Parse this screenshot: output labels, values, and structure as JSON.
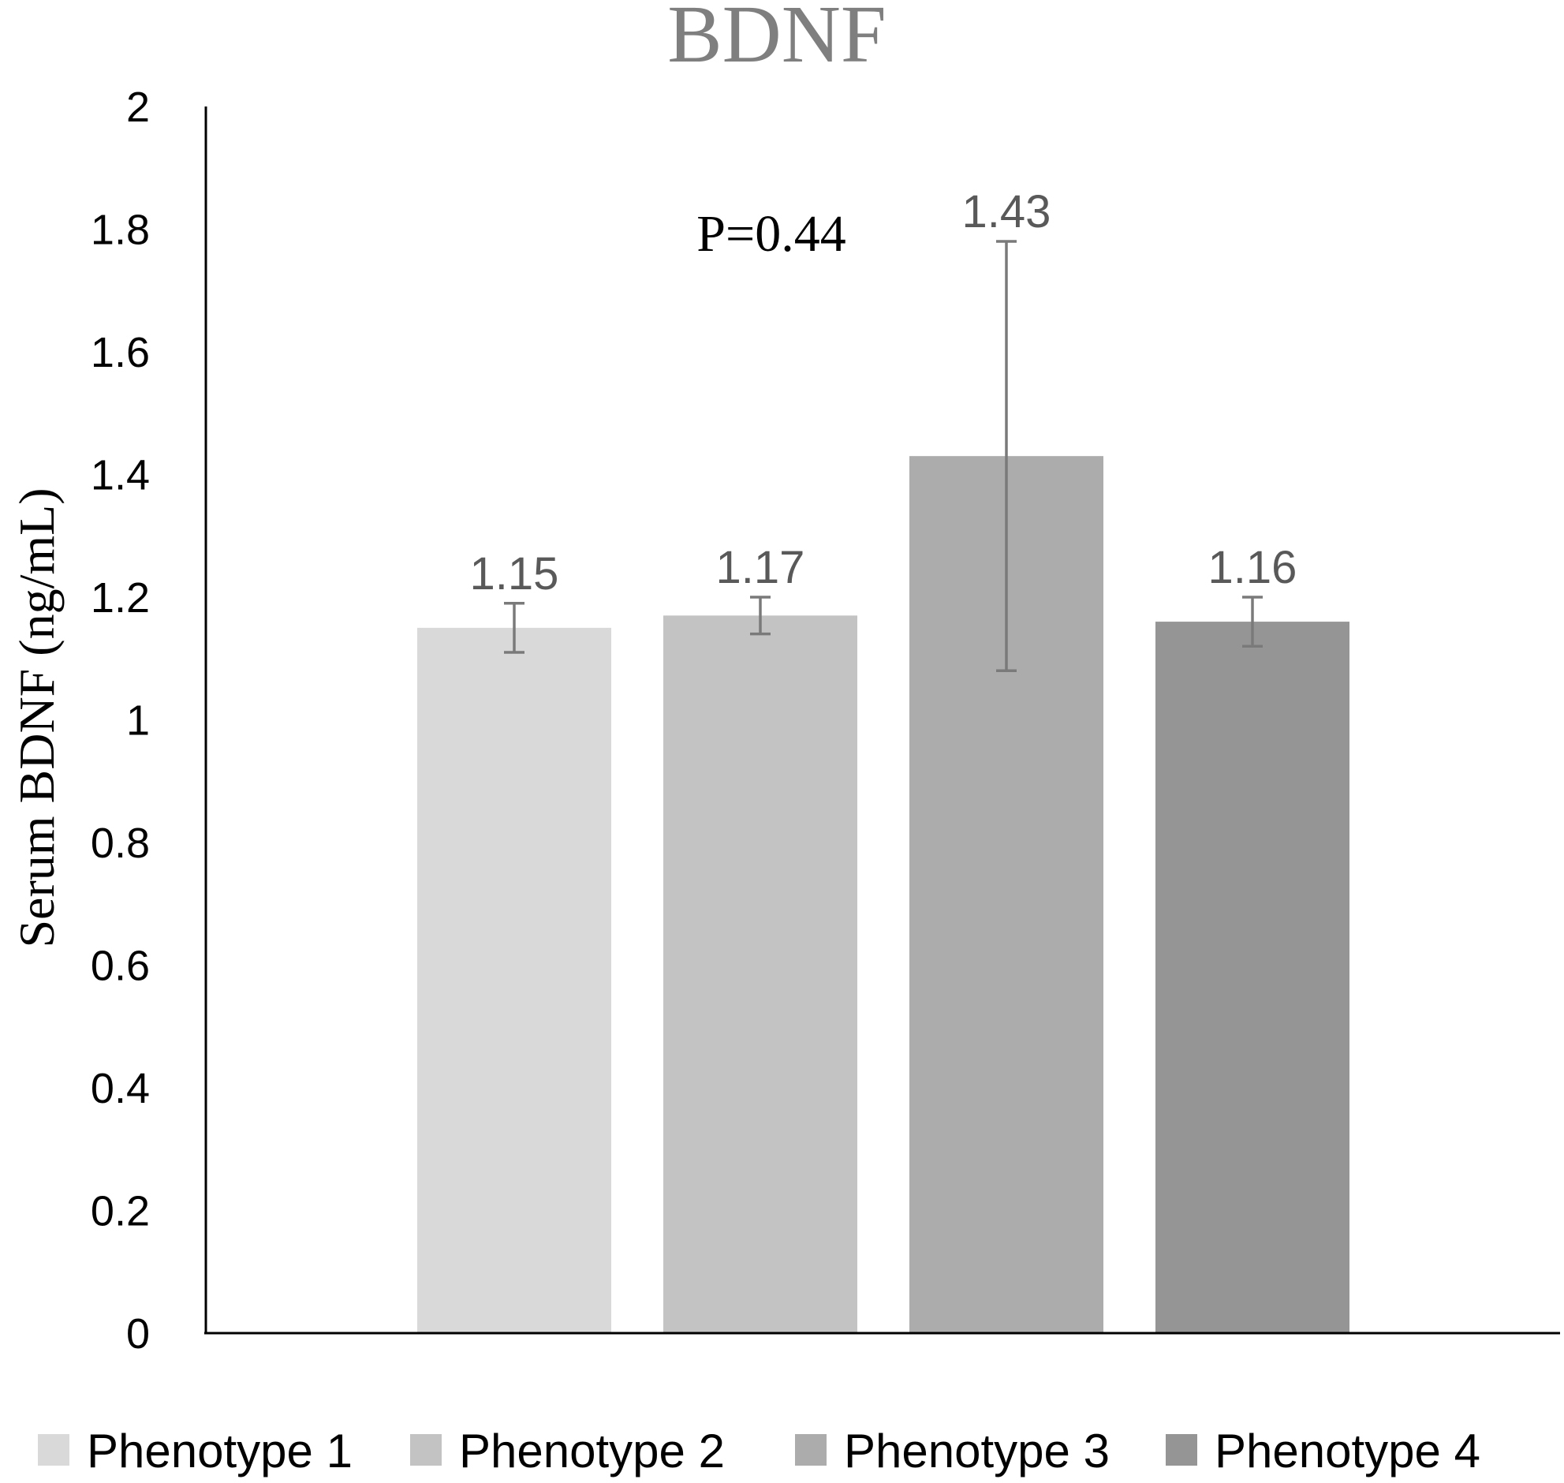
{
  "chart_data": {
    "type": "bar",
    "title": "BDNF",
    "ylabel": "Serum BDNF (ng/mL)",
    "xlabel": "",
    "ylim": [
      0,
      2
    ],
    "yticks": [
      "0",
      "0.2",
      "0.4",
      "0.6",
      "0.8",
      "1",
      "1.2",
      "1.4",
      "1.6",
      "1.8",
      "2"
    ],
    "grid": false,
    "legend_position": "bottom",
    "annotation": "P=0.44",
    "series": [
      {
        "name": "Phenotype 1",
        "value": 1.15,
        "label": "1.15",
        "err_low": 1.11,
        "err_high": 1.19,
        "color": "#d9d9d9"
      },
      {
        "name": "Phenotype 2",
        "value": 1.17,
        "label": "1.17",
        "err_low": 1.14,
        "err_high": 1.2,
        "color": "#c3c3c3"
      },
      {
        "name": "Phenotype 3",
        "value": 1.43,
        "label": "1.43",
        "err_low": 1.08,
        "err_high": 1.78,
        "color": "#acacac"
      },
      {
        "name": "Phenotype 4",
        "value": 1.16,
        "label": "1.16",
        "err_low": 1.12,
        "err_high": 1.2,
        "color": "#959595"
      }
    ],
    "error_bar_color": "#7a7a7a",
    "axis_color": "#000000"
  }
}
